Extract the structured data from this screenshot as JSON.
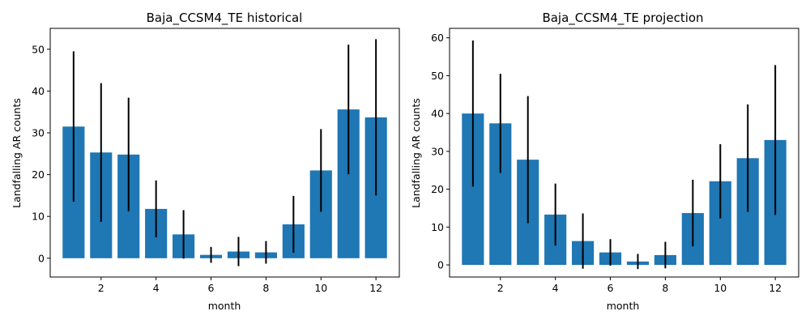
{
  "chart_data": [
    {
      "type": "bar",
      "title": "Baja_CCSM4_TE historical",
      "xlabel": "month",
      "ylabel": "Landfalling AR counts",
      "x": [
        1,
        2,
        3,
        4,
        5,
        6,
        7,
        8,
        9,
        10,
        11,
        12
      ],
      "values": [
        31.5,
        25.3,
        24.8,
        11.8,
        5.7,
        0.8,
        1.6,
        1.4,
        8.1,
        21.0,
        35.6,
        33.7
      ],
      "error": [
        18.0,
        16.6,
        13.6,
        6.8,
        5.8,
        1.9,
        3.5,
        2.7,
        6.8,
        9.9,
        15.5,
        18.7
      ],
      "xlim": [
        0.15,
        12.85
      ],
      "ylim": [
        -4.5,
        55
      ],
      "xticks": [
        2,
        4,
        6,
        8,
        10,
        12
      ],
      "yticks": [
        0,
        10,
        20,
        30,
        40,
        50
      ],
      "bar_color": "#1f77b4",
      "errorbar_color": "#000000"
    },
    {
      "type": "bar",
      "title": "Baja_CCSM4_TE projection",
      "xlabel": "month",
      "ylabel": "Landfalling AR counts",
      "x": [
        1,
        2,
        3,
        4,
        5,
        6,
        7,
        8,
        9,
        10,
        11,
        12
      ],
      "values": [
        40.0,
        37.4,
        27.8,
        13.3,
        6.3,
        3.3,
        0.9,
        2.6,
        13.7,
        22.1,
        28.2,
        33.0
      ],
      "error": [
        19.3,
        13.1,
        16.8,
        8.2,
        7.3,
        3.5,
        2.0,
        3.5,
        8.8,
        9.8,
        14.2,
        19.8
      ],
      "xlim": [
        0.15,
        12.85
      ],
      "ylim": [
        -3.2,
        62.5
      ],
      "xticks": [
        2,
        4,
        6,
        8,
        10,
        12
      ],
      "yticks": [
        0,
        10,
        20,
        30,
        40,
        50,
        60
      ],
      "bar_color": "#1f77b4",
      "errorbar_color": "#000000"
    }
  ]
}
